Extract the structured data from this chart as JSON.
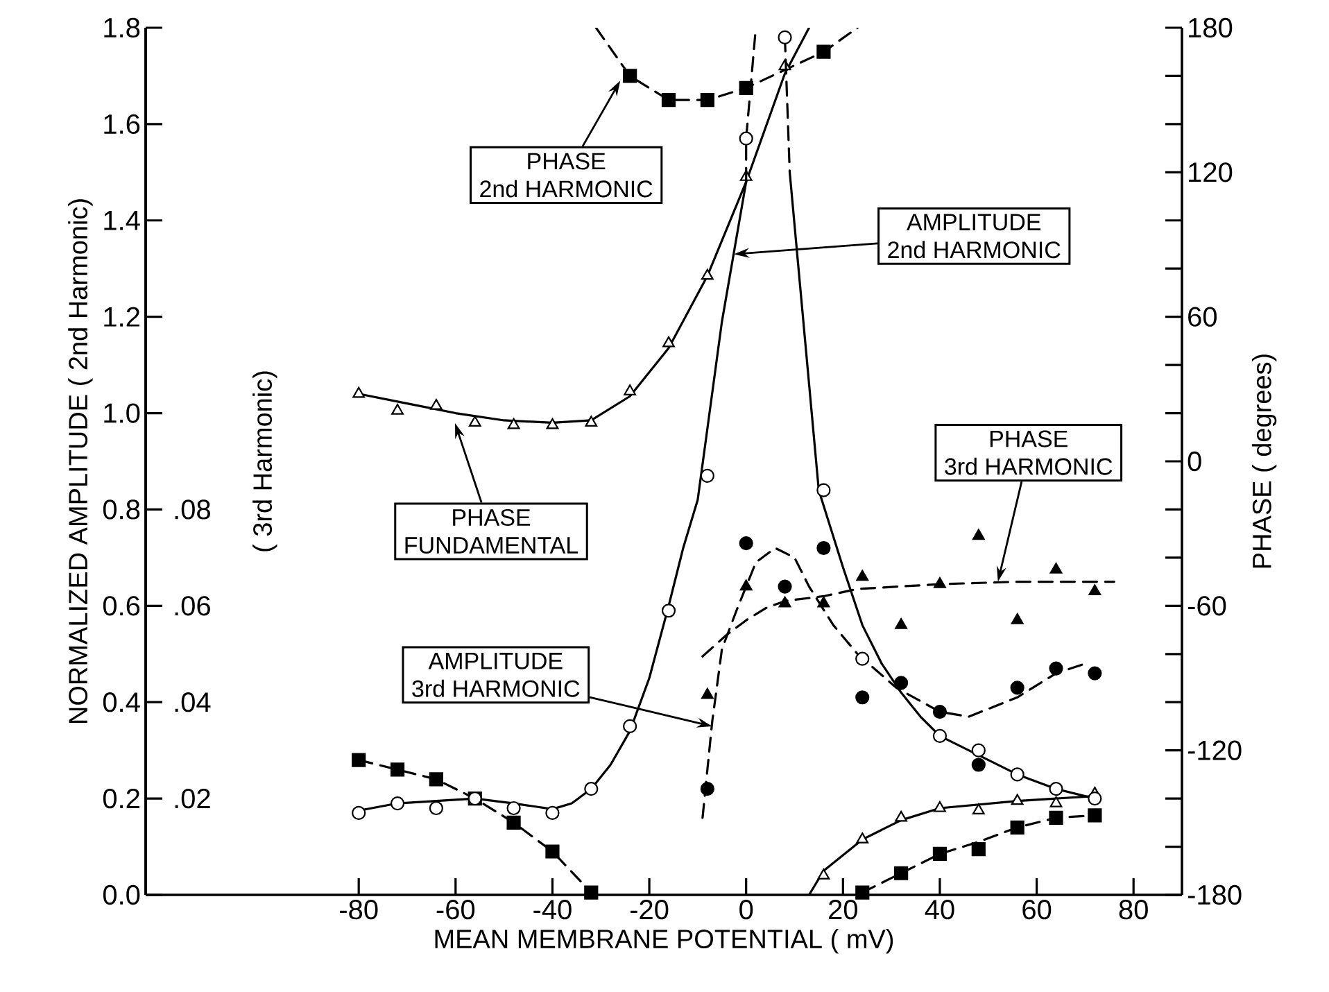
{
  "chart_data": {
    "type": "scatter",
    "xlabel": "MEAN MEMBRANE POTENTIAL ( mV)",
    "ylabel": "NORMALIZED AMPLITUDE ( 2nd Harmonic)",
    "y2label": "PHASE ( degrees)",
    "y3label": "( 3rd Harmonic)",
    "xlim": [
      -124,
      90
    ],
    "xticks": [
      -80,
      -60,
      -40,
      -20,
      0,
      20,
      40,
      60,
      80
    ],
    "ylim": [
      0,
      1.8
    ],
    "yticks": [
      {
        "value": 0,
        "label": "0.0"
      },
      0.2,
      0.4,
      0.6,
      0.8,
      {
        "value": 1,
        "label": "1.0"
      },
      1.2,
      1.4,
      1.6,
      1.8
    ],
    "y2lim": [
      -180,
      180
    ],
    "y2ticks": [
      -180,
      {
        "value": -160,
        "label": null
      },
      {
        "value": -140,
        "label": null
      },
      -120,
      {
        "value": -100,
        "label": null
      },
      {
        "value": -80,
        "label": null
      },
      -60,
      {
        "value": -40,
        "label": null
      },
      {
        "value": -20,
        "label": null
      },
      0,
      {
        "value": 20,
        "label": null
      },
      {
        "value": 40,
        "label": null
      },
      60,
      {
        "value": 80,
        "label": null
      },
      {
        "value": 100,
        "label": null
      },
      120,
      {
        "value": 140,
        "label": null
      },
      {
        "value": 160,
        "label": null
      },
      180
    ],
    "y3lim": [
      0,
      0.18
    ],
    "y3ticks": [
      {
        "value": 0.02,
        "label": ".02"
      },
      {
        "value": 0.04,
        "label": ".04"
      },
      {
        "value": 0.06,
        "label": ".06"
      },
      {
        "value": 0.08,
        "label": ".08"
      }
    ],
    "series": [
      {
        "type": "line",
        "line_style": "solid",
        "color": "#000000",
        "x": [
          -80,
          -72,
          -64,
          -56,
          -48,
          -40,
          -36,
          -32,
          -28,
          -24,
          -20,
          -16,
          -13,
          -10,
          -5,
          0,
          null,
          9,
          12,
          15,
          20,
          24,
          28,
          32,
          36,
          40,
          48,
          56,
          64,
          72
        ],
        "values": [
          0.175,
          0.19,
          0.195,
          0.2,
          0.19,
          0.178,
          0.19,
          0.22,
          0.27,
          0.34,
          0.45,
          0.6,
          0.72,
          0.82,
          1.19,
          1.48,
          null,
          1.5,
          1.17,
          0.84,
          0.68,
          0.56,
          0.48,
          0.42,
          0.37,
          0.33,
          0.29,
          0.25,
          0.22,
          0.2
        ]
      },
      {
        "type": "line",
        "line_style": "dashed",
        "color": "#000000",
        "x": [
          0,
          0,
          2,
          null,
          8,
          9
        ],
        "values": [
          1.48,
          1.57,
          1.8,
          null,
          1.78,
          1.5
        ]
      },
      {
        "type": "scatter",
        "marker": "circle",
        "color": "#ffffff",
        "x": [
          -80,
          -72,
          -64,
          -56,
          -48,
          -40,
          -32,
          -24,
          -16,
          -8,
          0,
          8,
          16,
          24,
          40,
          48,
          56,
          64,
          72
        ],
        "values": [
          0.17,
          0.19,
          0.18,
          0.2,
          0.18,
          0.17,
          0.22,
          0.35,
          0.59,
          0.87,
          1.57,
          1.78,
          0.84,
          0.49,
          0.33,
          0.3,
          0.25,
          0.22,
          0.2
        ]
      },
      {
        "type": "line",
        "axis": "y2",
        "line_style": "solid",
        "color": "#000000",
        "x": [
          -80,
          -70,
          -60,
          -50,
          -40,
          -32,
          -24,
          -16,
          -8,
          0,
          8,
          13,
          null,
          13,
          16,
          24,
          32,
          40,
          56,
          72
        ],
        "values": [
          28,
          24,
          20,
          17,
          16,
          17,
          27,
          47,
          77,
          116,
          161,
          180,
          null,
          -180,
          -170,
          -157,
          -149,
          -144,
          -141,
          -139
        ]
      },
      {
        "type": "scatter",
        "axis": "y2",
        "marker": "triangle",
        "color": "#ffffff",
        "x": [
          -80,
          -72,
          -64,
          -56,
          -48,
          -40,
          -32,
          -24,
          -16,
          -8,
          0,
          8,
          16,
          24,
          32,
          40,
          48,
          56,
          64,
          72
        ],
        "values": [
          28,
          21,
          23,
          16,
          15,
          15,
          16,
          29,
          49,
          77,
          118,
          164,
          -172,
          -157,
          -148,
          -144,
          -145,
          -141,
          -142,
          -138
        ]
      },
      {
        "type": "line",
        "axis": "y2",
        "line_style": "dashed",
        "color": "#000000",
        "x": [
          -80,
          -72,
          -64,
          -56,
          -48,
          -40,
          -32,
          null,
          -31,
          -24,
          -16,
          -8,
          0,
          16,
          23,
          null,
          24,
          32,
          40,
          48,
          56,
          64,
          72
        ],
        "values": [
          -124,
          -128,
          -132,
          -140,
          -150,
          -162,
          -179,
          null,
          180,
          160,
          150,
          150,
          155,
          170,
          180,
          null,
          -179,
          -171,
          -163,
          -158,
          -152,
          -148,
          -147
        ]
      },
      {
        "type": "scatter",
        "axis": "y2",
        "marker": "square",
        "color": "#000000",
        "x": [
          -80,
          -72,
          -64,
          -56,
          -48,
          -40,
          -32,
          -24,
          -16,
          -8,
          0,
          16,
          24,
          32,
          40,
          48,
          56,
          64,
          72
        ],
        "values": [
          -124,
          -128,
          -132,
          -140,
          -150,
          -162,
          -179,
          160,
          150,
          150,
          155,
          170,
          -179,
          -171,
          -163,
          -161,
          -152,
          -148,
          -147
        ]
      },
      {
        "type": "line",
        "axis": "y3",
        "line_style": "dashed",
        "color": "#000000",
        "x": [
          -9,
          -7,
          -5,
          -2,
          2,
          6,
          10,
          13,
          18,
          23,
          31,
          40,
          46,
          56,
          64,
          70
        ],
        "values": [
          0.016,
          0.036,
          0.051,
          0.059,
          0.069,
          0.072,
          0.07,
          0.064,
          0.056,
          0.05,
          0.043,
          0.038,
          0.037,
          0.041,
          0.046,
          0.048
        ]
      },
      {
        "type": "scatter",
        "axis": "y3",
        "marker": "circle",
        "color": "#000000",
        "x": [
          -8,
          0,
          8,
          16,
          24,
          32,
          40,
          48,
          56,
          64,
          72
        ],
        "values": [
          0.022,
          0.073,
          0.064,
          0.072,
          0.041,
          0.044,
          0.038,
          0.027,
          0.043,
          0.047,
          0.046
        ]
      },
      {
        "type": "line",
        "axis": "y2",
        "line_style": "dashed",
        "color": "#000000",
        "x": [
          -9,
          -4,
          0,
          4,
          8,
          16,
          23,
          40,
          56,
          76
        ],
        "values": [
          -81,
          -72,
          -66,
          -61,
          -58,
          -56,
          -53,
          -51,
          -50,
          -50
        ]
      },
      {
        "type": "scatter",
        "axis": "y2",
        "marker": "triangle",
        "color": "#000000",
        "x": [
          -8,
          0,
          8,
          16,
          24,
          32,
          40,
          48,
          56,
          64,
          72
        ],
        "values": [
          -97,
          -52,
          -59,
          -59,
          -48,
          -68,
          -51,
          -31,
          -66,
          -45,
          -54
        ]
      }
    ],
    "annotations": [
      {
        "text": "PHASE\n2nd HARMONIC",
        "x": -26,
        "y": 1.69
      },
      {
        "text": "AMPLITUDE\n2nd HARMONIC",
        "x": -2.5,
        "y": 1.33
      },
      "PHASE\nFUNDAMENTAL",
      {
        "text": "PHASE\n3rd HARMONIC",
        "x": 52,
        "y": 0.65
      },
      {
        "text": "AMPLITUDE\n3rd HARMONIC",
        "x": -7,
        "y": 0.35
      }
    ]
  }
}
